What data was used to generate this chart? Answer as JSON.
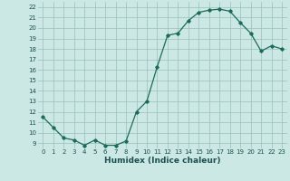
{
  "x": [
    0,
    1,
    2,
    3,
    4,
    5,
    6,
    7,
    8,
    9,
    10,
    11,
    12,
    13,
    14,
    15,
    16,
    17,
    18,
    19,
    20,
    21,
    22,
    23
  ],
  "y": [
    11.5,
    10.5,
    9.5,
    9.3,
    8.8,
    9.3,
    8.8,
    8.8,
    9.2,
    12.0,
    13.0,
    16.3,
    19.3,
    19.5,
    20.7,
    21.5,
    21.7,
    21.8,
    21.6,
    20.5,
    19.5,
    17.8,
    18.3,
    18.0
  ],
  "line_color": "#1a6b5a",
  "marker": "D",
  "marker_size": 1.8,
  "linewidth": 0.9,
  "xlabel": "Humidex (Indice chaleur)",
  "xlim": [
    -0.5,
    23.5
  ],
  "ylim": [
    8.5,
    22.5
  ],
  "yticks": [
    9,
    10,
    11,
    12,
    13,
    14,
    15,
    16,
    17,
    18,
    19,
    20,
    21,
    22
  ],
  "xticks": [
    0,
    1,
    2,
    3,
    4,
    5,
    6,
    7,
    8,
    9,
    10,
    11,
    12,
    13,
    14,
    15,
    16,
    17,
    18,
    19,
    20,
    21,
    22,
    23
  ],
  "xtick_labels": [
    "0",
    "1",
    "2",
    "3",
    "4",
    "5",
    "6",
    "7",
    "8",
    "9",
    "10",
    "11",
    "12",
    "13",
    "14",
    "15",
    "16",
    "17",
    "18",
    "19",
    "20",
    "21",
    "22",
    "23"
  ],
  "background_color": "#cce8e4",
  "grid_color": "#9bbfbb",
  "tick_fontsize": 5.0,
  "xlabel_fontsize": 6.5,
  "label_color": "#1a5050"
}
